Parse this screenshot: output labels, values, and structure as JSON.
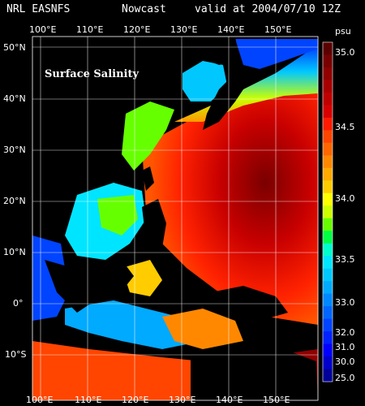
{
  "header": {
    "source": "NRL EASNFS",
    "product": "Nowcast",
    "valid": "valid at 2004/07/10 12Z"
  },
  "map_title": "Surface Salinity",
  "lon_labels": [
    "100°E",
    "110°E",
    "120°E",
    "130°E",
    "140°E",
    "150°E"
  ],
  "lat_labels": [
    "50°N",
    "40°N",
    "30°N",
    "20°N",
    "10°N",
    "0°",
    "10°S"
  ],
  "colorbar": {
    "unit": "psu",
    "labels": [
      "35.0",
      "34.5",
      "34.0",
      "33.5",
      "33.0",
      "32.0",
      "31.0",
      "30.0",
      "25.0"
    ],
    "colors": [
      "#5a0000",
      "#780000",
      "#900000",
      "#a80000",
      "#c00000",
      "#d80000",
      "#ff1a00",
      "#ff4500",
      "#ff6600",
      "#ff8800",
      "#ffaa00",
      "#ffcc00",
      "#ffff00",
      "#ccff00",
      "#66ff00",
      "#00ff44",
      "#00ffcc",
      "#00e5ff",
      "#00c8ff",
      "#00aaff",
      "#0088ff",
      "#0066ff",
      "#0044ff",
      "#0022ff",
      "#0000ff",
      "#0000cc",
      "#000099"
    ]
  }
}
